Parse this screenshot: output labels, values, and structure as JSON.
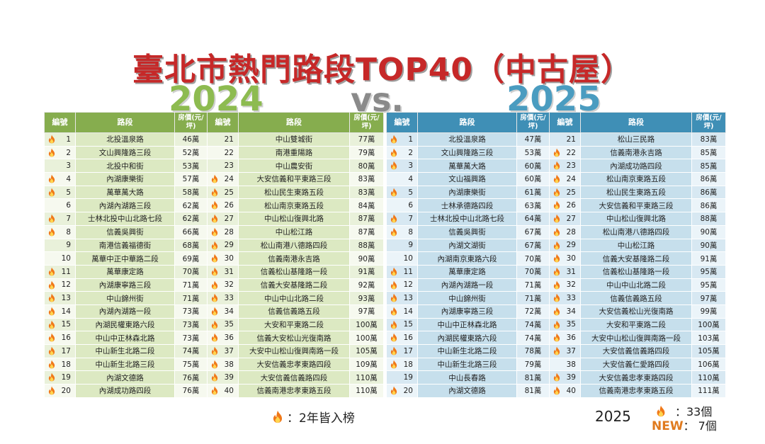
{
  "title": "臺北市熱門路段TOP40（中古屋）",
  "year_a": "2024",
  "vs": "vs.",
  "year_b": "2025",
  "headers": {
    "no": "編號",
    "road": "路段",
    "price": "房價(元/坪)"
  },
  "colors": {
    "green_header": "#86ad4e",
    "blue_header": "#3f8fb6",
    "title_red": "#c62828",
    "flame": "#f07818",
    "new_orange": "#e07b1f"
  },
  "table_2024": [
    [
      {
        "no": "1",
        "road": "北投溫泉路",
        "price": "46萬",
        "hot": true
      },
      {
        "no": "21",
        "road": "中山雙城街",
        "price": "77萬",
        "hot": false
      }
    ],
    [
      {
        "no": "2",
        "road": "文山興隆路三段",
        "price": "52萬",
        "hot": true
      },
      {
        "no": "22",
        "road": "南港重陽路",
        "price": "79萬",
        "hot": false
      }
    ],
    [
      {
        "no": "3",
        "road": "北投中和街",
        "price": "53萬",
        "hot": false
      },
      {
        "no": "23",
        "road": "中山農安街",
        "price": "80萬",
        "hot": false
      }
    ],
    [
      {
        "no": "4",
        "road": "內湖康樂街",
        "price": "57萬",
        "hot": true
      },
      {
        "no": "24",
        "road": "大安信義和平東路三段",
        "price": "83萬",
        "hot": true
      }
    ],
    [
      {
        "no": "5",
        "road": "萬華萬大路",
        "price": "58萬",
        "hot": true
      },
      {
        "no": "25",
        "road": "松山民生東路五段",
        "price": "83萬",
        "hot": true
      }
    ],
    [
      {
        "no": "6",
        "road": "內湖內湖路三段",
        "price": "62萬",
        "hot": false
      },
      {
        "no": "26",
        "road": "松山南京東路五段",
        "price": "84萬",
        "hot": true
      }
    ],
    [
      {
        "no": "7",
        "road": "士林北投中山北路七段",
        "price": "62萬",
        "hot": true
      },
      {
        "no": "27",
        "road": "中山松山復興北路",
        "price": "87萬",
        "hot": true
      }
    ],
    [
      {
        "no": "8",
        "road": "信義吳興街",
        "price": "66萬",
        "hot": true
      },
      {
        "no": "28",
        "road": "中山松江路",
        "price": "87萬",
        "hot": true
      }
    ],
    [
      {
        "no": "9",
        "road": "南港信義福德街",
        "price": "68萬",
        "hot": false
      },
      {
        "no": "29",
        "road": "松山南港八德路四段",
        "price": "88萬",
        "hot": true
      }
    ],
    [
      {
        "no": "10",
        "road": "萬華中正中華路二段",
        "price": "69萬",
        "hot": false
      },
      {
        "no": "30",
        "road": "信義南港永吉路",
        "price": "90萬",
        "hot": true
      }
    ],
    [
      {
        "no": "11",
        "road": "萬華康定路",
        "price": "70萬",
        "hot": true
      },
      {
        "no": "31",
        "road": "信義松山基隆路一段",
        "price": "91萬",
        "hot": true
      }
    ],
    [
      {
        "no": "12",
        "road": "內湖康寧路三段",
        "price": "71萬",
        "hot": true
      },
      {
        "no": "32",
        "road": "信義大安基隆路二段",
        "price": "92萬",
        "hot": true
      }
    ],
    [
      {
        "no": "13",
        "road": "中山錦州街",
        "price": "71萬",
        "hot": true
      },
      {
        "no": "33",
        "road": "中山中山北路二段",
        "price": "93萬",
        "hot": true
      }
    ],
    [
      {
        "no": "14",
        "road": "內湖內湖路一段",
        "price": "73萬",
        "hot": true
      },
      {
        "no": "34",
        "road": "信義信義路五段",
        "price": "97萬",
        "hot": true
      }
    ],
    [
      {
        "no": "15",
        "road": "內湖民權東路六段",
        "price": "73萬",
        "hot": true
      },
      {
        "no": "35",
        "road": "大安和平東路二段",
        "price": "100萬",
        "hot": true
      }
    ],
    [
      {
        "no": "16",
        "road": "中山中正林森北路",
        "price": "73萬",
        "hot": true
      },
      {
        "no": "36",
        "road": "信義大安松山光復南路",
        "price": "100萬",
        "hot": true
      }
    ],
    [
      {
        "no": "17",
        "road": "中山新生北路二段",
        "price": "74萬",
        "hot": true
      },
      {
        "no": "37",
        "road": "大安中山松山復興南路一段",
        "price": "105萬",
        "hot": true
      }
    ],
    [
      {
        "no": "18",
        "road": "中山新生北路三段",
        "price": "75萬",
        "hot": true
      },
      {
        "no": "38",
        "road": "大安信義忠孝東路四段",
        "price": "109萬",
        "hot": true
      }
    ],
    [
      {
        "no": "19",
        "road": "內湖文德路",
        "price": "76萬",
        "hot": true
      },
      {
        "no": "39",
        "road": "大安信義信義路四段",
        "price": "110萬",
        "hot": true
      }
    ],
    [
      {
        "no": "20",
        "road": "內湖成功路四段",
        "price": "76萬",
        "hot": true
      },
      {
        "no": "40",
        "road": "信義南港忠孝東路五段",
        "price": "110萬",
        "hot": true
      }
    ]
  ],
  "table_2025": [
    [
      {
        "no": "1",
        "road": "北投溫泉路",
        "price": "47萬",
        "hot": true
      },
      {
        "no": "21",
        "road": "松山三民路",
        "price": "83萬",
        "hot": false
      }
    ],
    [
      {
        "no": "2",
        "road": "文山興隆路三段",
        "price": "53萬",
        "hot": true
      },
      {
        "no": "22",
        "road": "信義南港永吉路",
        "price": "85萬",
        "hot": true
      }
    ],
    [
      {
        "no": "3",
        "road": "萬華萬大路",
        "price": "60萬",
        "hot": true
      },
      {
        "no": "23",
        "road": "內湖成功路四段",
        "price": "85萬",
        "hot": true
      }
    ],
    [
      {
        "no": "4",
        "road": "文山福興路",
        "price": "60萬",
        "hot": false
      },
      {
        "no": "24",
        "road": "松山南京東路五段",
        "price": "86萬",
        "hot": true
      }
    ],
    [
      {
        "no": "5",
        "road": "內湖康樂街",
        "price": "61萬",
        "hot": true
      },
      {
        "no": "25",
        "road": "松山民生東路五段",
        "price": "86萬",
        "hot": true
      }
    ],
    [
      {
        "no": "6",
        "road": "士林承德路四段",
        "price": "63萬",
        "hot": false
      },
      {
        "no": "26",
        "road": "大安信義和平東路三段",
        "price": "86萬",
        "hot": true
      }
    ],
    [
      {
        "no": "7",
        "road": "士林北投中山北路七段",
        "price": "64萬",
        "hot": true
      },
      {
        "no": "27",
        "road": "中山松山復興北路",
        "price": "88萬",
        "hot": true
      }
    ],
    [
      {
        "no": "8",
        "road": "信義吳興街",
        "price": "67萬",
        "hot": true
      },
      {
        "no": "28",
        "road": "松山南港八德路四段",
        "price": "90萬",
        "hot": true
      }
    ],
    [
      {
        "no": "9",
        "road": "內湖文湖街",
        "price": "67萬",
        "hot": false
      },
      {
        "no": "29",
        "road": "中山松江路",
        "price": "90萬",
        "hot": true
      }
    ],
    [
      {
        "no": "10",
        "road": "內湖南京東路六段",
        "price": "70萬",
        "hot": false
      },
      {
        "no": "30",
        "road": "信義大安基隆路二段",
        "price": "91萬",
        "hot": true
      }
    ],
    [
      {
        "no": "11",
        "road": "萬華康定路",
        "price": "70萬",
        "hot": true
      },
      {
        "no": "31",
        "road": "信義松山基隆路一段",
        "price": "95萬",
        "hot": true
      }
    ],
    [
      {
        "no": "12",
        "road": "內湖內湖路一段",
        "price": "71萬",
        "hot": true
      },
      {
        "no": "32",
        "road": "中山中山北路二段",
        "price": "95萬",
        "hot": true
      }
    ],
    [
      {
        "no": "13",
        "road": "中山錦州街",
        "price": "71萬",
        "hot": true
      },
      {
        "no": "33",
        "road": "信義信義路五段",
        "price": "97萬",
        "hot": true
      }
    ],
    [
      {
        "no": "14",
        "road": "內湖康寧路三段",
        "price": "72萬",
        "hot": true
      },
      {
        "no": "34",
        "road": "大安信義松山光復南路",
        "price": "99萬",
        "hot": true
      }
    ],
    [
      {
        "no": "15",
        "road": "中山中正林森北路",
        "price": "74萬",
        "hot": true
      },
      {
        "no": "35",
        "road": "大安和平東路二段",
        "price": "100萬",
        "hot": true
      }
    ],
    [
      {
        "no": "16",
        "road": "內湖民權東路六段",
        "price": "74萬",
        "hot": true
      },
      {
        "no": "36",
        "road": "大安中山松山復興南路一段",
        "price": "103萬",
        "hot": true
      }
    ],
    [
      {
        "no": "17",
        "road": "中山新生北路二段",
        "price": "78萬",
        "hot": true
      },
      {
        "no": "37",
        "road": "大安信義信義路四段",
        "price": "105萬",
        "hot": true
      }
    ],
    [
      {
        "no": "18",
        "road": "中山新生北路三段",
        "price": "79萬",
        "hot": true
      },
      {
        "no": "38",
        "road": "大安信義仁愛路四段",
        "price": "106萬",
        "hot": false
      }
    ],
    [
      {
        "no": "19",
        "road": "中山長春路",
        "price": "81萬",
        "hot": false
      },
      {
        "no": "39",
        "road": "大安信義忠孝東路四段",
        "price": "110萬",
        "hot": true
      }
    ],
    [
      {
        "no": "20",
        "road": "內湖文德路",
        "price": "81萬",
        "hot": true
      },
      {
        "no": "40",
        "road": "信義南港忠孝東路五段",
        "price": "111萬",
        "hot": true
      }
    ]
  ],
  "legend": "：2年皆入榜",
  "stats": {
    "year": "2025",
    "hot_count": "：33個",
    "new_label": "NEW",
    "new_count": "：  7個"
  }
}
